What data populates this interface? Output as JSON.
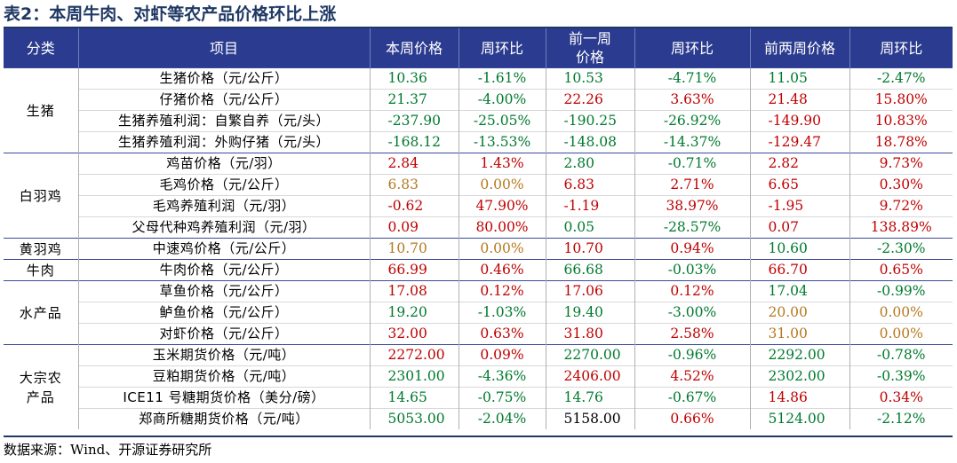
{
  "title": "表2：本周牛肉、对虾等农产品价格环比上涨",
  "headers": [
    "分类",
    "项目",
    "本周价格",
    "周环比",
    "前一周\n价格",
    "周环比",
    "前两周价格",
    "周环比"
  ],
  "colors": {
    "red": "#c00000",
    "green": "#007a2e",
    "orange": "#b7791f",
    "header_bg": "#2b3b8f"
  },
  "groups": [
    {
      "category": "生猪",
      "rows": [
        {
          "item": "生猪价格（元/公斤）",
          "cells": [
            {
              "v": "10.36",
              "c": "green"
            },
            {
              "v": "-1.61%",
              "c": "green"
            },
            {
              "v": "10.53",
              "c": "green"
            },
            {
              "v": "-4.71%",
              "c": "green"
            },
            {
              "v": "11.05",
              "c": "green"
            },
            {
              "v": "-2.47%",
              "c": "green"
            }
          ]
        },
        {
          "item": "仔猪价格（元/公斤）",
          "cells": [
            {
              "v": "21.37",
              "c": "green"
            },
            {
              "v": "-4.00%",
              "c": "green"
            },
            {
              "v": "22.26",
              "c": "red"
            },
            {
              "v": "3.63%",
              "c": "red"
            },
            {
              "v": "21.48",
              "c": "red"
            },
            {
              "v": "15.80%",
              "c": "red"
            }
          ]
        },
        {
          "item": "生猪养殖利润：自繁自养（元/头）",
          "cells": [
            {
              "v": "-237.90",
              "c": "green"
            },
            {
              "v": "-25.05%",
              "c": "green"
            },
            {
              "v": "-190.25",
              "c": "green"
            },
            {
              "v": "-26.92%",
              "c": "green"
            },
            {
              "v": "-149.90",
              "c": "red"
            },
            {
              "v": "10.83%",
              "c": "red"
            }
          ]
        },
        {
          "item": "生猪养殖利润：外购仔猪（元/头）",
          "cells": [
            {
              "v": "-168.12",
              "c": "green"
            },
            {
              "v": "-13.53%",
              "c": "green"
            },
            {
              "v": "-148.08",
              "c": "green"
            },
            {
              "v": "-14.37%",
              "c": "green"
            },
            {
              "v": "-129.47",
              "c": "red"
            },
            {
              "v": "18.78%",
              "c": "red"
            }
          ]
        }
      ]
    },
    {
      "category": "白羽鸡",
      "rows": [
        {
          "item": "鸡苗价格（元/羽）",
          "cells": [
            {
              "v": "2.84",
              "c": "red"
            },
            {
              "v": "1.43%",
              "c": "red"
            },
            {
              "v": "2.80",
              "c": "green"
            },
            {
              "v": "-0.71%",
              "c": "green"
            },
            {
              "v": "2.82",
              "c": "red"
            },
            {
              "v": "9.73%",
              "c": "red"
            }
          ]
        },
        {
          "item": "毛鸡价格（元/公斤）",
          "cells": [
            {
              "v": "6.83",
              "c": "orange"
            },
            {
              "v": "0.00%",
              "c": "orange"
            },
            {
              "v": "6.83",
              "c": "red"
            },
            {
              "v": "2.71%",
              "c": "red"
            },
            {
              "v": "6.65",
              "c": "red"
            },
            {
              "v": "0.30%",
              "c": "red"
            }
          ]
        },
        {
          "item": "毛鸡养殖利润（元/羽）",
          "cells": [
            {
              "v": "-0.62",
              "c": "red"
            },
            {
              "v": "47.90%",
              "c": "red"
            },
            {
              "v": "-1.19",
              "c": "red"
            },
            {
              "v": "38.97%",
              "c": "red"
            },
            {
              "v": "-1.95",
              "c": "red"
            },
            {
              "v": "9.72%",
              "c": "red"
            }
          ]
        },
        {
          "item": "父母代种鸡养殖利润（元/羽）",
          "cells": [
            {
              "v": "0.09",
              "c": "red"
            },
            {
              "v": "80.00%",
              "c": "red"
            },
            {
              "v": "0.05",
              "c": "green"
            },
            {
              "v": "-28.57%",
              "c": "green"
            },
            {
              "v": "0.07",
              "c": "red"
            },
            {
              "v": "138.89%",
              "c": "red"
            }
          ]
        }
      ]
    },
    {
      "category": "黄羽鸡",
      "rows": [
        {
          "item": "中速鸡价格（元/公斤）",
          "cells": [
            {
              "v": "10.70",
              "c": "orange"
            },
            {
              "v": "0.00%",
              "c": "orange"
            },
            {
              "v": "10.70",
              "c": "red"
            },
            {
              "v": "0.94%",
              "c": "red"
            },
            {
              "v": "10.60",
              "c": "green"
            },
            {
              "v": "-2.30%",
              "c": "green"
            }
          ]
        }
      ]
    },
    {
      "category": "牛肉",
      "rows": [
        {
          "item": "牛肉价格（元/公斤）",
          "cells": [
            {
              "v": "66.99",
              "c": "red"
            },
            {
              "v": "0.46%",
              "c": "red"
            },
            {
              "v": "66.68",
              "c": "green"
            },
            {
              "v": "-0.03%",
              "c": "green"
            },
            {
              "v": "66.70",
              "c": "red"
            },
            {
              "v": "0.65%",
              "c": "red"
            }
          ]
        }
      ]
    },
    {
      "category": "水产品",
      "rows": [
        {
          "item": "草鱼价格（元/公斤）",
          "cells": [
            {
              "v": "17.08",
              "c": "red"
            },
            {
              "v": "0.12%",
              "c": "red"
            },
            {
              "v": "17.06",
              "c": "red"
            },
            {
              "v": "0.12%",
              "c": "red"
            },
            {
              "v": "17.04",
              "c": "green"
            },
            {
              "v": "-0.99%",
              "c": "green"
            }
          ]
        },
        {
          "item": "鲈鱼价格（元/公斤）",
          "cells": [
            {
              "v": "19.20",
              "c": "green"
            },
            {
              "v": "-1.03%",
              "c": "green"
            },
            {
              "v": "19.40",
              "c": "green"
            },
            {
              "v": "-3.00%",
              "c": "green"
            },
            {
              "v": "20.00",
              "c": "orange"
            },
            {
              "v": "0.00%",
              "c": "orange"
            }
          ]
        },
        {
          "item": "对虾价格（元/公斤）",
          "cells": [
            {
              "v": "32.00",
              "c": "red"
            },
            {
              "v": "0.63%",
              "c": "red"
            },
            {
              "v": "31.80",
              "c": "red"
            },
            {
              "v": "2.58%",
              "c": "red"
            },
            {
              "v": "31.00",
              "c": "orange"
            },
            {
              "v": "0.00%",
              "c": "orange"
            }
          ]
        }
      ]
    },
    {
      "category": "大宗农\n产品",
      "rows": [
        {
          "item": "玉米期货价格（元/吨）",
          "cells": [
            {
              "v": "2272.00",
              "c": "red"
            },
            {
              "v": "0.09%",
              "c": "red"
            },
            {
              "v": "2270.00",
              "c": "green"
            },
            {
              "v": "-0.96%",
              "c": "green"
            },
            {
              "v": "2292.00",
              "c": "green"
            },
            {
              "v": "-0.78%",
              "c": "green"
            }
          ]
        },
        {
          "item": "豆粕期货价格（元/吨）",
          "cells": [
            {
              "v": "2301.00",
              "c": "green"
            },
            {
              "v": "-4.36%",
              "c": "green"
            },
            {
              "v": "2406.00",
              "c": "red"
            },
            {
              "v": "4.52%",
              "c": "red"
            },
            {
              "v": "2302.00",
              "c": "green"
            },
            {
              "v": "-0.39%",
              "c": "green"
            }
          ]
        },
        {
          "item": "ICE11 号糖期货价格（美分/磅）",
          "cells": [
            {
              "v": "14.65",
              "c": "green"
            },
            {
              "v": "-0.75%",
              "c": "green"
            },
            {
              "v": "14.76",
              "c": "green"
            },
            {
              "v": "-0.67%",
              "c": "green"
            },
            {
              "v": "14.86",
              "c": "red"
            },
            {
              "v": "0.34%",
              "c": "red"
            }
          ]
        },
        {
          "item": "郑商所糖期货价格（元/吨）",
          "cells": [
            {
              "v": "5053.00",
              "c": "green"
            },
            {
              "v": "-2.04%",
              "c": "green"
            },
            {
              "v": "5158.00",
              "c": "black"
            },
            {
              "v": "0.66%",
              "c": "red"
            },
            {
              "v": "5124.00",
              "c": "green"
            },
            {
              "v": "-2.12%",
              "c": "green"
            }
          ]
        }
      ]
    }
  ],
  "source": "数据来源：Wind、开源证券研究所"
}
